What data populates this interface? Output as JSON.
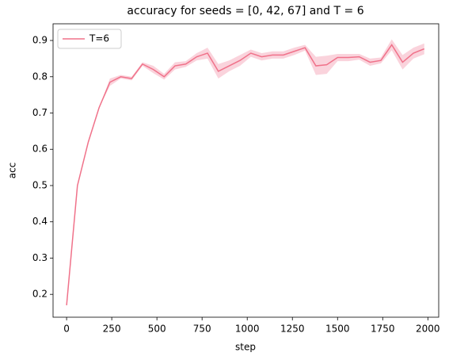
{
  "chart_data": {
    "type": "line",
    "title": "accuracy for seeds = [0, 42, 67] and T = 6",
    "x_label": "step",
    "y_label": "acc",
    "x": [
      0,
      60,
      120,
      180,
      240,
      300,
      360,
      420,
      480,
      540,
      600,
      660,
      720,
      780,
      840,
      900,
      960,
      1020,
      1080,
      1140,
      1200,
      1260,
      1320,
      1380,
      1440,
      1500,
      1560,
      1620,
      1680,
      1740,
      1800,
      1860,
      1920,
      1980
    ],
    "series": [
      {
        "name": "T=6",
        "color": "#f0728a",
        "band_color": "#f7b6c4",
        "values": [
          0.17,
          0.5,
          0.62,
          0.715,
          0.785,
          0.8,
          0.795,
          0.835,
          0.82,
          0.8,
          0.83,
          0.835,
          0.855,
          0.865,
          0.815,
          0.83,
          0.845,
          0.865,
          0.855,
          0.86,
          0.86,
          0.87,
          0.88,
          0.83,
          0.833,
          0.853,
          0.853,
          0.855,
          0.84,
          0.845,
          0.888,
          0.84,
          0.865,
          0.877
        ],
        "lower": [
          0.17,
          0.5,
          0.62,
          0.715,
          0.775,
          0.795,
          0.79,
          0.83,
          0.81,
          0.792,
          0.82,
          0.827,
          0.845,
          0.85,
          0.795,
          0.815,
          0.83,
          0.855,
          0.845,
          0.85,
          0.85,
          0.86,
          0.872,
          0.805,
          0.808,
          0.843,
          0.843,
          0.847,
          0.83,
          0.837,
          0.873,
          0.82,
          0.85,
          0.862
        ],
        "upper": [
          0.17,
          0.5,
          0.62,
          0.715,
          0.795,
          0.805,
          0.8,
          0.84,
          0.83,
          0.808,
          0.84,
          0.843,
          0.865,
          0.88,
          0.835,
          0.845,
          0.86,
          0.875,
          0.865,
          0.87,
          0.87,
          0.88,
          0.888,
          0.855,
          0.858,
          0.863,
          0.863,
          0.863,
          0.85,
          0.853,
          0.903,
          0.86,
          0.88,
          0.892
        ]
      }
    ],
    "xlim": [
      -75,
      2060
    ],
    "xticks": [
      0,
      250,
      500,
      750,
      1000,
      1250,
      1500,
      1750,
      2000
    ],
    "ylim": [
      0.137,
      0.946
    ],
    "yticks": [
      0.2,
      0.3,
      0.4,
      0.5,
      0.6,
      0.7,
      0.8,
      0.9
    ],
    "legend": "upper left",
    "grid": false
  }
}
